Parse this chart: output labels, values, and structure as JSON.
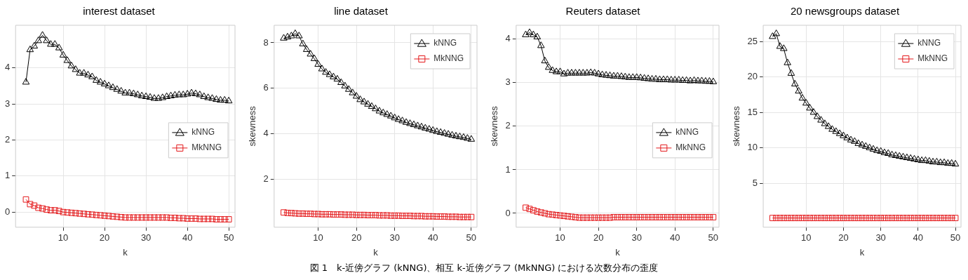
{
  "chart_data": [
    {
      "type": "line",
      "title": "interest dataset",
      "xlabel": "k",
      "x": [
        1,
        2,
        3,
        4,
        5,
        6,
        7,
        8,
        9,
        10,
        11,
        12,
        13,
        14,
        15,
        16,
        17,
        18,
        19,
        20,
        21,
        22,
        23,
        24,
        25,
        26,
        27,
        28,
        29,
        30,
        31,
        32,
        33,
        34,
        35,
        36,
        37,
        38,
        39,
        40,
        41,
        42,
        43,
        44,
        45,
        46,
        47,
        48,
        49,
        50
      ],
      "xlim": [
        -1.5,
        51.5
      ],
      "xticks": [
        10,
        20,
        30,
        40,
        50
      ],
      "ylim": [
        -0.42,
        5.18
      ],
      "yticks": [
        0,
        1,
        2,
        3,
        4
      ],
      "grid": true,
      "legend": "right",
      "annotations": [
        "図 1　k-近傍グラフ (kNNG)、相互 k-近傍グラフ (MkNNG) における次数分布の歪度"
      ],
      "series": [
        {
          "name": "kNNG",
          "color": "#000000",
          "marker": "triangle",
          "values": [
            3.6,
            4.5,
            4.6,
            4.75,
            4.9,
            4.75,
            4.65,
            4.65,
            4.55,
            4.35,
            4.2,
            4.05,
            3.95,
            3.85,
            3.85,
            3.8,
            3.75,
            3.65,
            3.6,
            3.55,
            3.5,
            3.45,
            3.4,
            3.35,
            3.3,
            3.3,
            3.28,
            3.25,
            3.22,
            3.2,
            3.18,
            3.15,
            3.15,
            3.17,
            3.2,
            3.22,
            3.24,
            3.25,
            3.25,
            3.27,
            3.3,
            3.28,
            3.25,
            3.2,
            3.17,
            3.15,
            3.12,
            3.1,
            3.1,
            3.08
          ]
        },
        {
          "name": "MkNNG",
          "color": "#e41a1c",
          "marker": "square",
          "values": [
            0.35,
            0.22,
            0.18,
            0.12,
            0.1,
            0.07,
            0.05,
            0.05,
            0.03,
            0.0,
            -0.01,
            -0.02,
            -0.03,
            -0.04,
            -0.05,
            -0.06,
            -0.07,
            -0.08,
            -0.09,
            -0.1,
            -0.11,
            -0.12,
            -0.13,
            -0.14,
            -0.15,
            -0.15,
            -0.15,
            -0.15,
            -0.15,
            -0.15,
            -0.15,
            -0.15,
            -0.15,
            -0.15,
            -0.15,
            -0.16,
            -0.16,
            -0.17,
            -0.17,
            -0.18,
            -0.18,
            -0.18,
            -0.19,
            -0.19,
            -0.19,
            -0.19,
            -0.2,
            -0.2,
            -0.2,
            -0.2
          ]
        }
      ]
    },
    {
      "type": "line",
      "title": "line dataset",
      "xlabel": "k",
      "ylabel": "skewness",
      "x": [
        1,
        2,
        3,
        4,
        5,
        6,
        7,
        8,
        9,
        10,
        11,
        12,
        13,
        14,
        15,
        16,
        17,
        18,
        19,
        20,
        21,
        22,
        23,
        24,
        25,
        26,
        27,
        28,
        29,
        30,
        31,
        32,
        33,
        34,
        35,
        36,
        37,
        38,
        39,
        40,
        41,
        42,
        43,
        44,
        45,
        46,
        47,
        48,
        49,
        50
      ],
      "xlim": [
        -1.5,
        51.5
      ],
      "xticks": [
        10,
        20,
        30,
        40,
        50
      ],
      "ylim": [
        -0.1,
        8.77
      ],
      "yticks": [
        2,
        4,
        6,
        8
      ],
      "grid": true,
      "legend": "top right",
      "series": [
        {
          "name": "kNNG",
          "color": "#000000",
          "marker": "triangle",
          "values": [
            8.2,
            8.25,
            8.3,
            8.4,
            8.3,
            7.95,
            7.7,
            7.5,
            7.3,
            7.05,
            6.85,
            6.7,
            6.6,
            6.5,
            6.4,
            6.25,
            6.1,
            5.95,
            5.8,
            5.65,
            5.5,
            5.4,
            5.3,
            5.2,
            5.1,
            5.0,
            4.92,
            4.85,
            4.78,
            4.7,
            4.63,
            4.57,
            4.5,
            4.45,
            4.4,
            4.35,
            4.3,
            4.25,
            4.2,
            4.15,
            4.1,
            4.06,
            4.02,
            3.98,
            3.94,
            3.9,
            3.87,
            3.84,
            3.8,
            3.76
          ]
        },
        {
          "name": "MkNNG",
          "color": "#e41a1c",
          "marker": "square",
          "values": [
            0.55,
            0.53,
            0.52,
            0.51,
            0.5,
            0.5,
            0.49,
            0.49,
            0.48,
            0.48,
            0.47,
            0.47,
            0.47,
            0.46,
            0.46,
            0.46,
            0.45,
            0.45,
            0.45,
            0.44,
            0.44,
            0.44,
            0.43,
            0.43,
            0.43,
            0.42,
            0.42,
            0.42,
            0.41,
            0.41,
            0.41,
            0.4,
            0.4,
            0.4,
            0.39,
            0.39,
            0.39,
            0.38,
            0.38,
            0.38,
            0.37,
            0.37,
            0.37,
            0.36,
            0.36,
            0.36,
            0.35,
            0.35,
            0.35,
            0.35
          ]
        }
      ]
    },
    {
      "type": "line",
      "title": "Reuters dataset",
      "xlabel": "k",
      "ylabel": "skewness",
      "x": [
        1,
        2,
        3,
        4,
        5,
        6,
        7,
        8,
        9,
        10,
        11,
        12,
        13,
        14,
        15,
        16,
        17,
        18,
        19,
        20,
        21,
        22,
        23,
        24,
        25,
        26,
        27,
        28,
        29,
        30,
        31,
        32,
        33,
        34,
        35,
        36,
        37,
        38,
        39,
        40,
        41,
        42,
        43,
        44,
        45,
        46,
        47,
        48,
        49,
        50
      ],
      "xlim": [
        -1.5,
        51.5
      ],
      "xticks": [
        10,
        20,
        30,
        40,
        50
      ],
      "ylim": [
        -0.32,
        4.32
      ],
      "yticks": [
        0,
        1,
        2,
        3,
        4
      ],
      "grid": true,
      "legend": "right",
      "series": [
        {
          "name": "kNNG",
          "color": "#000000",
          "marker": "triangle",
          "values": [
            4.1,
            4.15,
            4.1,
            4.05,
            3.85,
            3.5,
            3.35,
            3.28,
            3.25,
            3.25,
            3.2,
            3.22,
            3.22,
            3.22,
            3.22,
            3.22,
            3.22,
            3.23,
            3.22,
            3.2,
            3.18,
            3.17,
            3.16,
            3.15,
            3.15,
            3.14,
            3.13,
            3.12,
            3.12,
            3.12,
            3.11,
            3.1,
            3.09,
            3.08,
            3.08,
            3.07,
            3.07,
            3.07,
            3.06,
            3.06,
            3.06,
            3.05,
            3.05,
            3.04,
            3.05,
            3.04,
            3.04,
            3.03,
            3.03,
            3.02
          ]
        },
        {
          "name": "MkNNG",
          "color": "#e41a1c",
          "marker": "square",
          "values": [
            0.13,
            0.1,
            0.07,
            0.04,
            0.02,
            0.0,
            -0.02,
            -0.03,
            -0.04,
            -0.05,
            -0.06,
            -0.07,
            -0.08,
            -0.09,
            -0.1,
            -0.1,
            -0.1,
            -0.1,
            -0.1,
            -0.1,
            -0.1,
            -0.1,
            -0.1,
            -0.09,
            -0.09,
            -0.09,
            -0.09,
            -0.09,
            -0.09,
            -0.09,
            -0.09,
            -0.09,
            -0.09,
            -0.09,
            -0.09,
            -0.09,
            -0.09,
            -0.09,
            -0.09,
            -0.09,
            -0.09,
            -0.09,
            -0.09,
            -0.09,
            -0.09,
            -0.09,
            -0.09,
            -0.09,
            -0.09,
            -0.09
          ]
        }
      ]
    },
    {
      "type": "line",
      "title": "20 newsgroups dataset",
      "xlabel": "k",
      "ylabel": "skewness",
      "x": [
        1,
        2,
        3,
        4,
        5,
        6,
        7,
        8,
        9,
        10,
        11,
        12,
        13,
        14,
        15,
        16,
        17,
        18,
        19,
        20,
        21,
        22,
        23,
        24,
        25,
        26,
        27,
        28,
        29,
        30,
        31,
        32,
        33,
        34,
        35,
        36,
        37,
        38,
        39,
        40,
        41,
        42,
        43,
        44,
        45,
        46,
        47,
        48,
        49,
        50
      ],
      "xlim": [
        -1.5,
        51.5
      ],
      "xticks": [
        10,
        20,
        30,
        40,
        50
      ],
      "ylim": [
        -1.2,
        27.3
      ],
      "yticks": [
        5,
        10,
        15,
        20,
        25
      ],
      "grid": true,
      "legend": "top right",
      "series": [
        {
          "name": "kNNG",
          "color": "#000000",
          "marker": "triangle",
          "values": [
            25.7,
            26.1,
            24.3,
            24,
            22,
            20.5,
            19,
            18,
            17,
            16.3,
            15.6,
            15,
            14.4,
            13.9,
            13.4,
            13,
            12.6,
            12.3,
            12,
            11.7,
            11.4,
            11.1,
            10.9,
            10.6,
            10.4,
            10.2,
            10.0,
            9.8,
            9.6,
            9.5,
            9.3,
            9.2,
            9.0,
            8.9,
            8.8,
            8.7,
            8.6,
            8.5,
            8.4,
            8.3,
            8.2,
            8.2,
            8.1,
            8.0,
            8.0,
            7.9,
            7.9,
            7.8,
            7.8,
            7.7
          ]
        },
        {
          "name": "MkNNG",
          "color": "#e41a1c",
          "marker": "square",
          "values": [
            0.1,
            0.1,
            0.1,
            0.1,
            0.1,
            0.1,
            0.1,
            0.1,
            0.1,
            0.1,
            0.1,
            0.1,
            0.1,
            0.1,
            0.1,
            0.1,
            0.1,
            0.1,
            0.1,
            0.1,
            0.1,
            0.1,
            0.1,
            0.1,
            0.1,
            0.1,
            0.1,
            0.1,
            0.1,
            0.1,
            0.1,
            0.1,
            0.1,
            0.1,
            0.1,
            0.1,
            0.1,
            0.1,
            0.1,
            0.1,
            0.1,
            0.1,
            0.1,
            0.1,
            0.1,
            0.1,
            0.1,
            0.1,
            0.1,
            0.1
          ]
        }
      ]
    }
  ]
}
